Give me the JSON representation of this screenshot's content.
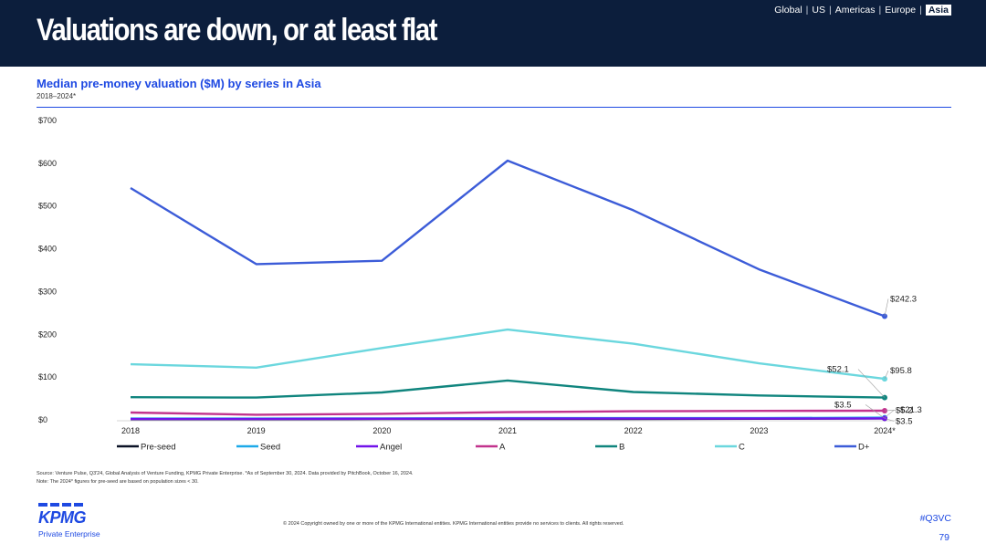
{
  "header": {
    "title": "Valuations are down, or at least flat",
    "regions": [
      "Global",
      "US",
      "Americas",
      "Europe",
      "Asia"
    ],
    "active_region": "Asia",
    "bg_color": "#0c1e3c"
  },
  "chart_data": {
    "type": "line",
    "title": "Median pre-money valuation ($M) by series in Asia",
    "subtitle": "2018–2024*",
    "categories": [
      "2018",
      "2019",
      "2020",
      "2021",
      "2022",
      "2023",
      "2024*"
    ],
    "ylim": [
      0,
      700
    ],
    "y_ticks": [
      0,
      100,
      200,
      300,
      400,
      500,
      600,
      700
    ],
    "y_tick_labels": [
      "$0",
      "$100",
      "$200",
      "$300",
      "$400",
      "$500",
      "$600",
      "$700"
    ],
    "grid": false,
    "legend_position": "bottom",
    "series": [
      {
        "name": "Pre-seed",
        "color": "#0b1226",
        "values": [
          1.5,
          1.5,
          2,
          2,
          2,
          2.5,
          3.5
        ]
      },
      {
        "name": "Seed",
        "color": "#1da9e9",
        "values": [
          3,
          3,
          3.5,
          4,
          4,
          4,
          5.2
        ]
      },
      {
        "name": "Angel",
        "color": "#7213ea",
        "values": [
          2,
          2,
          2.5,
          3,
          3,
          3,
          3.5
        ]
      },
      {
        "name": "A",
        "color": "#c2338d",
        "values": [
          17,
          12,
          14,
          18,
          20,
          21,
          21.3
        ]
      },
      {
        "name": "B",
        "color": "#10857e",
        "values": [
          53,
          52,
          64,
          92,
          65,
          57,
          52.1
        ]
      },
      {
        "name": "C",
        "color": "#6bd7de",
        "values": [
          130,
          122,
          168,
          211,
          178,
          132,
          95.8
        ]
      },
      {
        "name": "D+",
        "color": "#3c5cd8",
        "values": [
          542,
          364,
          372,
          606,
          490,
          352,
          242.3
        ]
      }
    ],
    "annotations": [
      {
        "series": "D+",
        "text": "$242.3"
      },
      {
        "series": "C",
        "text": "$95.8"
      },
      {
        "series": "B",
        "text": "$52.1"
      },
      {
        "series": "A",
        "text": "$21.3"
      },
      {
        "series": "Seed",
        "text": "$5.2"
      },
      {
        "series": "Angel",
        "text": "$3.5"
      },
      {
        "series": "Pre-seed",
        "text": "$3.5"
      }
    ]
  },
  "footer": {
    "source": "Source: Venture Pulse, Q3'24, Global Analysis of Venture Funding, KPMG Private Enterprise. *As of September 30, 2024. Data provided by PitchBook, October 16, 2024.",
    "note": "Note: The 2024* figures for pre-seed are based on population sizes < 30.",
    "copyright": "© 2024 Copyright owned by one or more of the KPMG International entities. KPMG International entities provide no services to clients. All rights reserved.",
    "logo_text": "KPMG",
    "logo_subtext": "Private Enterprise",
    "hashtag": "#Q3VC",
    "page_number": "79"
  }
}
